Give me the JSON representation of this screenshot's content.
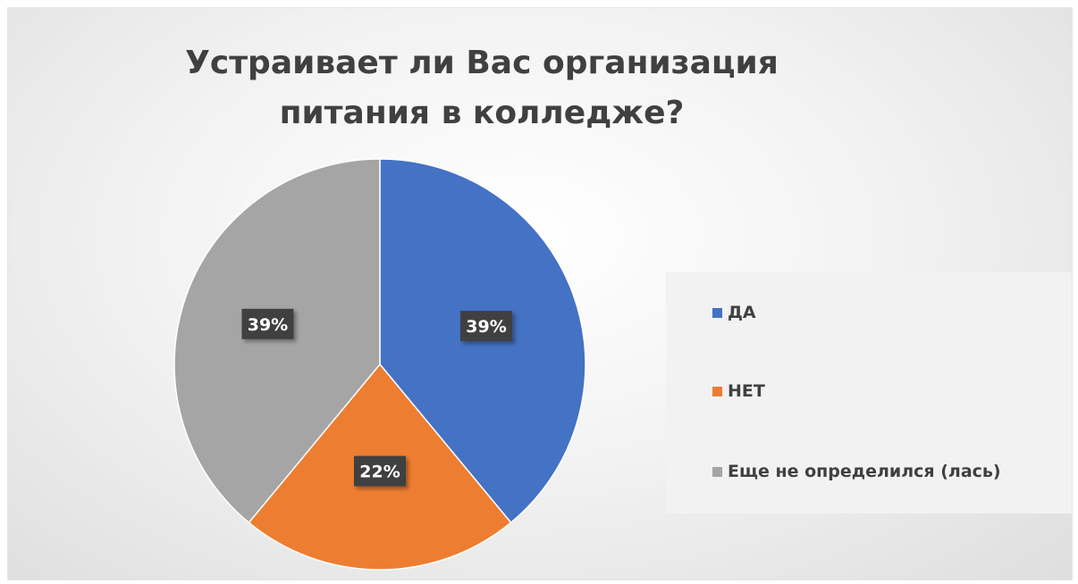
{
  "chart_data": {
    "type": "pie",
    "title": "Устраивает ли Вас организация питания в колледже?",
    "categories": [
      "ДА",
      "НЕТ",
      "Еще не определился (лась)"
    ],
    "values": [
      39,
      22,
      39
    ],
    "data_labels": [
      "39%",
      "22%",
      "39%"
    ],
    "colors": [
      "#4472c4",
      "#ed7d31",
      "#a5a5a5"
    ],
    "legend_position": "right"
  }
}
